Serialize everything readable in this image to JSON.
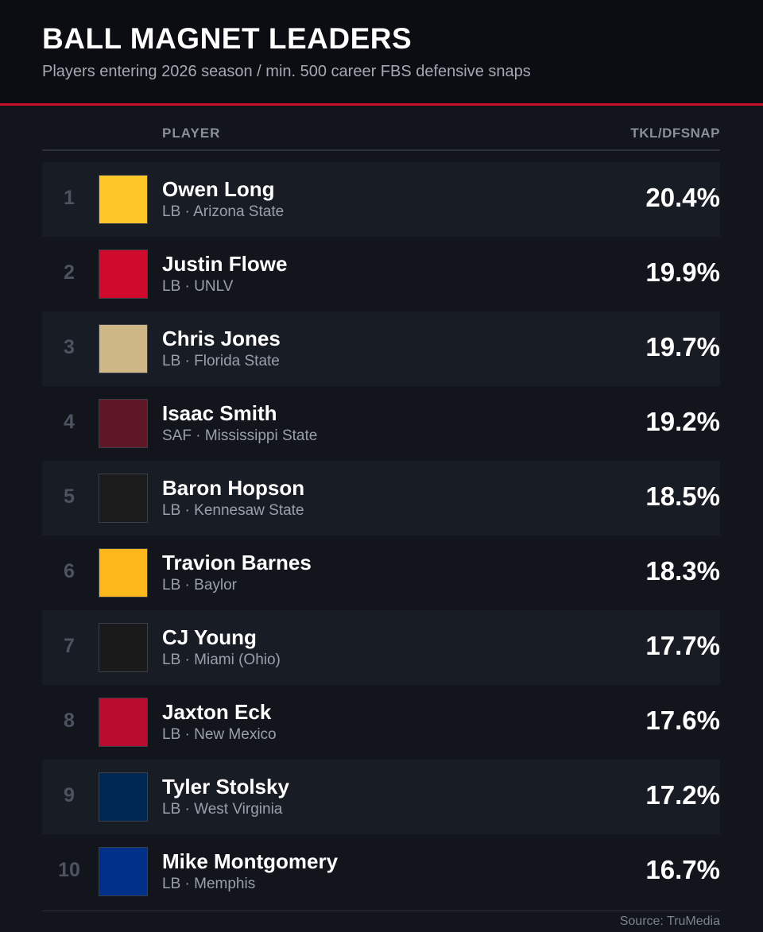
{
  "header": {
    "title": "BALL MAGNET LEADERS",
    "subtitle": "Players entering 2026 season / min. 500 career FBS defensive snaps"
  },
  "table": {
    "columns": [
      "PLAYER",
      "TKL/DFSNAP"
    ],
    "rows": [
      {
        "rank": "1",
        "name": "Owen Long",
        "position": "LB",
        "school": "Arizona State",
        "stat": "20.4%",
        "logo_bg": "#FFC627"
      },
      {
        "rank": "2",
        "name": "Justin Flowe",
        "position": "LB",
        "school": "UNLV",
        "stat": "19.9%",
        "logo_bg": "#CF0A2C"
      },
      {
        "rank": "3",
        "name": "Chris Jones",
        "position": "LB",
        "school": "Florida State",
        "stat": "19.7%",
        "logo_bg": "#CEB888"
      },
      {
        "rank": "4",
        "name": "Isaac Smith",
        "position": "SAF",
        "school": "Mississippi State",
        "stat": "19.2%",
        "logo_bg": "#5D1725"
      },
      {
        "rank": "5",
        "name": "Baron Hopson",
        "position": "LB",
        "school": "Kennesaw State",
        "stat": "18.5%",
        "logo_bg": "#1b1b1b"
      },
      {
        "rank": "6",
        "name": "Travion Barnes",
        "position": "LB",
        "school": "Baylor",
        "stat": "18.3%",
        "logo_bg": "#FFB81C"
      },
      {
        "rank": "7",
        "name": "CJ Young",
        "position": "LB",
        "school": "Miami (Ohio)",
        "stat": "17.7%",
        "logo_bg": "#1a1a1a"
      },
      {
        "rank": "8",
        "name": "Jaxton Eck",
        "position": "LB",
        "school": "New Mexico",
        "stat": "17.6%",
        "logo_bg": "#BA0C2F"
      },
      {
        "rank": "9",
        "name": "Tyler Stolsky",
        "position": "LB",
        "school": "West Virginia",
        "stat": "17.2%",
        "logo_bg": "#002855"
      },
      {
        "rank": "10",
        "name": "Mike Montgomery",
        "position": "LB",
        "school": "Memphis",
        "stat": "16.7%",
        "logo_bg": "#003087"
      }
    ],
    "separator": "·"
  },
  "footer": {
    "source": "Source: TruMedia"
  }
}
